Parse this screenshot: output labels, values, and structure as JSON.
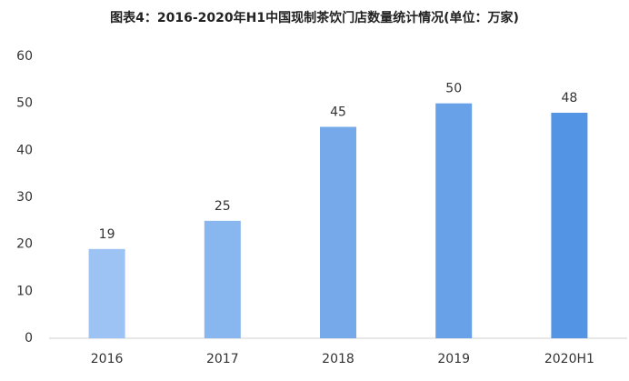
{
  "chart_data": {
    "type": "bar",
    "title": "图表4：2016-2020年H1中国现制茶饮门店数量统计情况(单位：万家)",
    "categories": [
      "2016",
      "2017",
      "2018",
      "2019",
      "2020H1"
    ],
    "values": [
      19,
      25,
      45,
      50,
      48
    ],
    "colors": [
      "#9cc3f3",
      "#88b6ef",
      "#76a9ea",
      "#69a1e9",
      "#5394e4"
    ],
    "ylim": [
      0,
      60
    ],
    "yticks": [
      0,
      10,
      20,
      30,
      40,
      50,
      60
    ],
    "grid": false
  }
}
